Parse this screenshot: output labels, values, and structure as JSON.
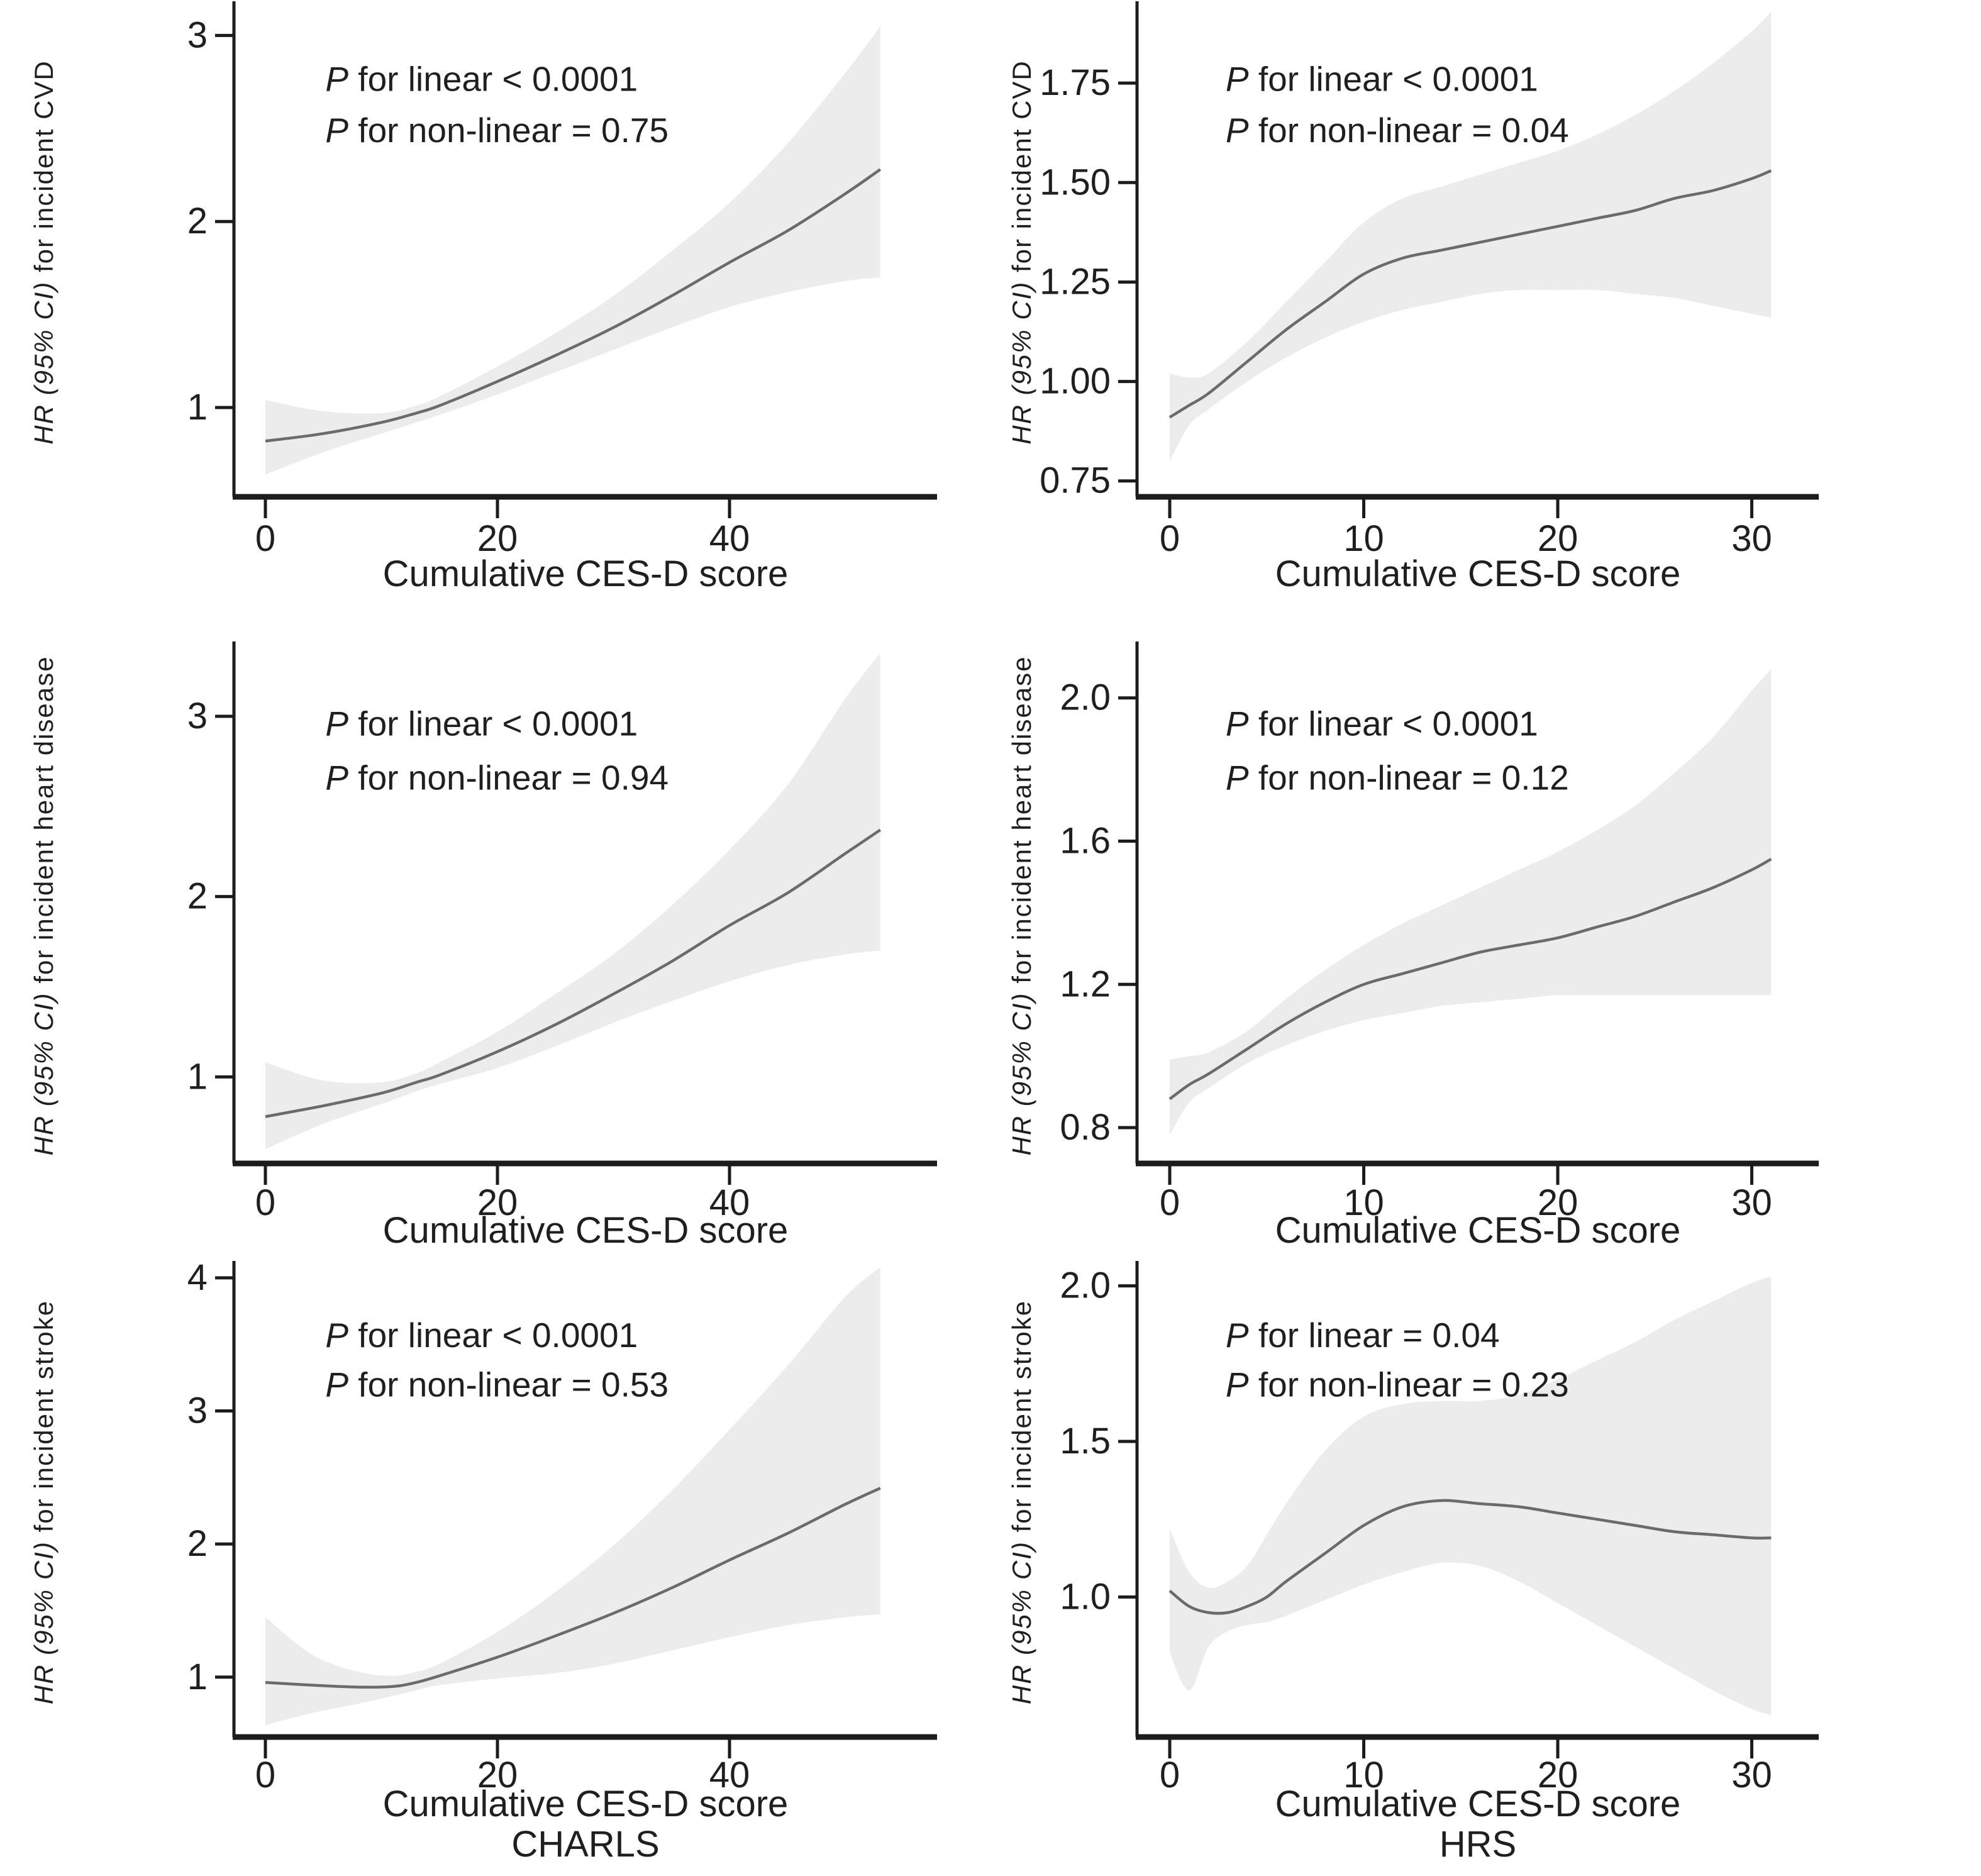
{
  "figure": {
    "xlabel": "Cumulative CES-D score",
    "footers": [
      "CHARLS",
      "HRS"
    ],
    "colors": {
      "band": "#ececec",
      "curve": "#6b6b6b",
      "axis": "#1c1c1c",
      "text": "#1f1f1f"
    }
  },
  "chart_data": [
    {
      "id": "charls-cvd",
      "type": "line",
      "cohort": "CHARLS",
      "ylabel_italic": "HR (95% CI)",
      "ylabel_rest": " for incident CVD",
      "xlabel": "Cumulative CES-D score",
      "annotations": [
        "P for linear < 0.0001",
        "P for non-linear = 0.75"
      ],
      "x": [
        0,
        5,
        10,
        13,
        15,
        20,
        25,
        30,
        35,
        40,
        45,
        50,
        53
      ],
      "series": [
        {
          "name": "HR",
          "values": [
            0.82,
            0.86,
            0.92,
            0.97,
            1.01,
            1.14,
            1.28,
            1.43,
            1.6,
            1.78,
            1.95,
            2.15,
            2.28
          ]
        },
        {
          "name": "lower95",
          "values": [
            0.64,
            0.76,
            0.86,
            0.92,
            0.96,
            1.07,
            1.19,
            1.31,
            1.43,
            1.54,
            1.62,
            1.68,
            1.7
          ]
        },
        {
          "name": "upper95",
          "values": [
            1.04,
            0.98,
            0.97,
            1.01,
            1.06,
            1.22,
            1.4,
            1.6,
            1.84,
            2.1,
            2.42,
            2.8,
            3.05
          ]
        }
      ],
      "xticks": [
        "0",
        "20",
        "40"
      ],
      "xtick_values": [
        0,
        20,
        40
      ],
      "yticks": [
        "1",
        "2",
        "3"
      ],
      "ytick_values": [
        1,
        2,
        3
      ],
      "xlim": [
        0,
        53
      ],
      "ylim": [
        0.52,
        3.15
      ],
      "grid": false,
      "legend": "none"
    },
    {
      "id": "hrs-cvd",
      "type": "line",
      "cohort": "HRS",
      "ylabel_italic": "HR (95% CI)",
      "ylabel_rest": " for incident CVD",
      "xlabel": "Cumulative CES-D score",
      "annotations": [
        "P for linear < 0.0001",
        "P for non-linear = 0.04"
      ],
      "x": [
        0,
        1,
        2,
        4,
        6,
        8,
        10,
        12,
        14,
        16,
        18,
        20,
        22,
        24,
        26,
        28,
        30,
        31
      ],
      "series": [
        {
          "name": "HR",
          "values": [
            0.91,
            0.94,
            0.97,
            1.05,
            1.13,
            1.2,
            1.27,
            1.31,
            1.33,
            1.35,
            1.37,
            1.39,
            1.41,
            1.43,
            1.46,
            1.48,
            1.51,
            1.53
          ]
        },
        {
          "name": "lower95",
          "values": [
            0.8,
            0.89,
            0.93,
            1.0,
            1.06,
            1.11,
            1.15,
            1.18,
            1.2,
            1.22,
            1.23,
            1.23,
            1.23,
            1.22,
            1.21,
            1.19,
            1.17,
            1.16
          ]
        },
        {
          "name": "upper95",
          "values": [
            1.02,
            1.01,
            1.02,
            1.1,
            1.2,
            1.3,
            1.4,
            1.46,
            1.49,
            1.52,
            1.55,
            1.58,
            1.62,
            1.67,
            1.73,
            1.8,
            1.88,
            1.93
          ]
        }
      ],
      "xticks": [
        "0",
        "10",
        "20",
        "30"
      ],
      "xtick_values": [
        0,
        10,
        20,
        30
      ],
      "yticks": [
        "0.75",
        "1.00",
        "1.25",
        "1.50",
        "1.75"
      ],
      "ytick_values": [
        0.75,
        1.0,
        1.25,
        1.5,
        1.75
      ],
      "xlim": [
        0,
        31
      ],
      "ylim": [
        0.71,
        1.94
      ],
      "grid": false,
      "legend": "none"
    },
    {
      "id": "charls-heart-disease",
      "type": "line",
      "cohort": "CHARLS",
      "ylabel_italic": "HR (95% CI)",
      "ylabel_rest": " for incident heart disease",
      "xlabel": "Cumulative CES-D score",
      "annotations": [
        "P for linear < 0.0001",
        "P for non-linear = 0.94"
      ],
      "x": [
        0,
        5,
        10,
        13,
        15,
        20,
        25,
        30,
        35,
        40,
        45,
        50,
        53
      ],
      "series": [
        {
          "name": "HR",
          "values": [
            0.78,
            0.84,
            0.91,
            0.97,
            1.01,
            1.14,
            1.29,
            1.46,
            1.64,
            1.84,
            2.02,
            2.24,
            2.37
          ]
        },
        {
          "name": "lower95",
          "values": [
            0.6,
            0.74,
            0.85,
            0.92,
            0.96,
            1.05,
            1.17,
            1.3,
            1.42,
            1.53,
            1.62,
            1.68,
            1.7
          ]
        },
        {
          "name": "upper95",
          "values": [
            1.08,
            0.98,
            0.97,
            1.02,
            1.08,
            1.25,
            1.46,
            1.68,
            1.95,
            2.26,
            2.62,
            3.1,
            3.35
          ]
        }
      ],
      "xticks": [
        "0",
        "20",
        "40"
      ],
      "xtick_values": [
        0,
        20,
        40
      ],
      "yticks": [
        "1",
        "2",
        "3"
      ],
      "ytick_values": [
        1,
        2,
        3
      ],
      "xlim": [
        0,
        53
      ],
      "ylim": [
        0.52,
        3.38
      ],
      "grid": false,
      "legend": "none"
    },
    {
      "id": "hrs-heart-disease",
      "type": "line",
      "cohort": "HRS",
      "ylabel_italic": "HR (95% CI)",
      "ylabel_rest": " for incident heart disease",
      "xlabel": "Cumulative CES-D score",
      "annotations": [
        "P for linear < 0.0001",
        "P for non-linear = 0.12"
      ],
      "x": [
        0,
        1,
        2,
        4,
        6,
        8,
        10,
        12,
        14,
        16,
        18,
        20,
        22,
        24,
        26,
        28,
        30,
        31
      ],
      "series": [
        {
          "name": "HR",
          "values": [
            0.88,
            0.92,
            0.95,
            1.02,
            1.09,
            1.15,
            1.2,
            1.23,
            1.26,
            1.29,
            1.31,
            1.33,
            1.36,
            1.39,
            1.43,
            1.47,
            1.52,
            1.55
          ]
        },
        {
          "name": "lower95",
          "values": [
            0.78,
            0.87,
            0.91,
            0.98,
            1.03,
            1.07,
            1.1,
            1.12,
            1.14,
            1.15,
            1.16,
            1.17,
            1.17,
            1.17,
            1.17,
            1.17,
            1.17,
            1.17
          ]
        },
        {
          "name": "upper95",
          "values": [
            0.99,
            1.0,
            1.01,
            1.07,
            1.16,
            1.24,
            1.31,
            1.37,
            1.42,
            1.47,
            1.52,
            1.57,
            1.63,
            1.7,
            1.79,
            1.89,
            2.02,
            2.08
          ]
        }
      ],
      "xticks": [
        "0",
        "10",
        "20",
        "30"
      ],
      "xtick_values": [
        0,
        10,
        20,
        30
      ],
      "yticks": [
        "0.8",
        "1.2",
        "1.6",
        "2.0"
      ],
      "ytick_values": [
        0.8,
        1.2,
        1.6,
        2.0
      ],
      "xlim": [
        0,
        31
      ],
      "ylim": [
        0.7,
        2.14
      ],
      "grid": false,
      "legend": "none"
    },
    {
      "id": "charls-stroke",
      "type": "line",
      "cohort": "CHARLS",
      "ylabel_italic": "HR (95% CI)",
      "ylabel_rest": " for incident stroke",
      "xlabel": "Cumulative CES-D score",
      "annotations": [
        "P for linear < 0.0001",
        "P for non-linear = 0.53"
      ],
      "x": [
        0,
        4,
        8,
        11,
        13,
        15,
        20,
        25,
        30,
        35,
        40,
        45,
        50,
        53
      ],
      "series": [
        {
          "name": "HR",
          "values": [
            0.96,
            0.94,
            0.925,
            0.93,
            0.96,
            1.01,
            1.15,
            1.31,
            1.48,
            1.67,
            1.88,
            2.08,
            2.3,
            2.42
          ]
        },
        {
          "name": "lower95",
          "values": [
            0.64,
            0.73,
            0.8,
            0.86,
            0.9,
            0.94,
            0.99,
            1.03,
            1.1,
            1.2,
            1.3,
            1.39,
            1.45,
            1.47
          ]
        },
        {
          "name": "upper95",
          "values": [
            1.45,
            1.17,
            1.04,
            1.01,
            1.04,
            1.1,
            1.34,
            1.64,
            1.99,
            2.4,
            2.86,
            3.34,
            3.86,
            4.08
          ]
        }
      ],
      "xticks": [
        "0",
        "20",
        "40"
      ],
      "xtick_values": [
        0,
        20,
        40
      ],
      "yticks": [
        "1",
        "2",
        "3",
        "4"
      ],
      "ytick_values": [
        1,
        2,
        3,
        4
      ],
      "xlim": [
        0,
        53
      ],
      "ylim": [
        0.55,
        4.08
      ],
      "grid": false,
      "legend": "none"
    },
    {
      "id": "hrs-stroke",
      "type": "line",
      "cohort": "HRS",
      "ylabel_italic": "HR (95% CI)",
      "ylabel_rest": " for incident stroke",
      "xlabel": "Cumulative CES-D score",
      "annotations": [
        "P for linear = 0.04",
        "P for non-linear = 0.23"
      ],
      "x": [
        0,
        1,
        2,
        3,
        4,
        5,
        6,
        8,
        10,
        12,
        14,
        16,
        18,
        20,
        22,
        24,
        26,
        28,
        30,
        31
      ],
      "series": [
        {
          "name": "HR",
          "values": [
            1.02,
            0.97,
            0.95,
            0.95,
            0.97,
            1.0,
            1.05,
            1.14,
            1.23,
            1.29,
            1.31,
            1.3,
            1.29,
            1.27,
            1.25,
            1.23,
            1.21,
            1.2,
            1.19,
            1.19
          ]
        },
        {
          "name": "lower95",
          "values": [
            0.82,
            0.7,
            0.84,
            0.89,
            0.91,
            0.92,
            0.94,
            0.99,
            1.04,
            1.08,
            1.11,
            1.1,
            1.05,
            0.98,
            0.91,
            0.84,
            0.77,
            0.7,
            0.64,
            0.62
          ]
        },
        {
          "name": "upper95",
          "values": [
            1.22,
            1.08,
            1.03,
            1.05,
            1.1,
            1.2,
            1.3,
            1.47,
            1.58,
            1.62,
            1.63,
            1.63,
            1.65,
            1.7,
            1.76,
            1.82,
            1.89,
            1.95,
            2.01,
            2.03
          ]
        }
      ],
      "xticks": [
        "0",
        "10",
        "20",
        "30"
      ],
      "xtick_values": [
        0,
        10,
        20,
        30
      ],
      "yticks": [
        "1.0",
        "1.5",
        "2.0"
      ],
      "ytick_values": [
        1.0,
        1.5,
        2.0
      ],
      "xlim": [
        0,
        31
      ],
      "ylim": [
        0.55,
        2.06
      ],
      "grid": false,
      "legend": "none"
    }
  ]
}
